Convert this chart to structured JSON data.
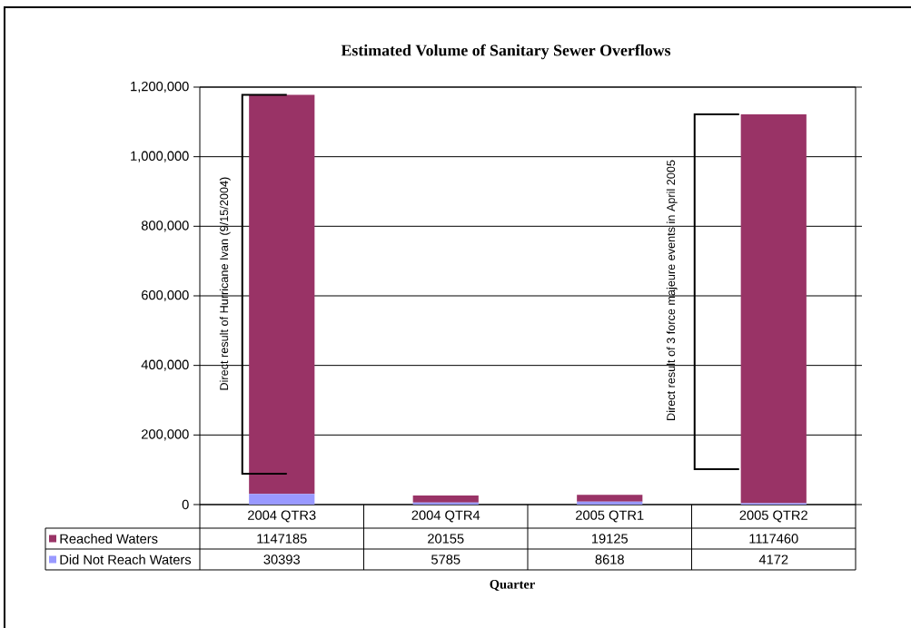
{
  "chart_data": {
    "type": "bar",
    "stacked": true,
    "title": "Estimated Volume of Sanitary Sewer Overflows",
    "xlabel": "Quarter",
    "categories": [
      "2004 QTR3",
      "2004 QTR4",
      "2005 QTR1",
      "2005 QTR2"
    ],
    "series": [
      {
        "name": "Did Not Reach Waters",
        "color": "#9999ff",
        "values": [
          30393,
          5785,
          8618,
          4172
        ]
      },
      {
        "name": "Reached Waters",
        "color": "#993366",
        "values": [
          1147185,
          20155,
          19125,
          1117460
        ]
      }
    ],
    "ylim": [
      0,
      1200000
    ],
    "yticks": [
      0,
      {
        "value": 200000,
        "label": "200,000"
      },
      {
        "value": 400000,
        "label": "400,000"
      },
      {
        "value": 600000,
        "label": "600,000"
      },
      {
        "value": 800000,
        "label": "800,000"
      },
      {
        "value": 1000000,
        "label": "1,000,000"
      },
      {
        "value": 1200000,
        "label": "1,200,000"
      }
    ],
    "grid": "y",
    "legend": "bottom left",
    "data_labels": true,
    "annotations": [
      "Direct result of Hurricane Ivan (9/15/2004)",
      "Direct result of 3 force majeure events in April 2005"
    ]
  }
}
